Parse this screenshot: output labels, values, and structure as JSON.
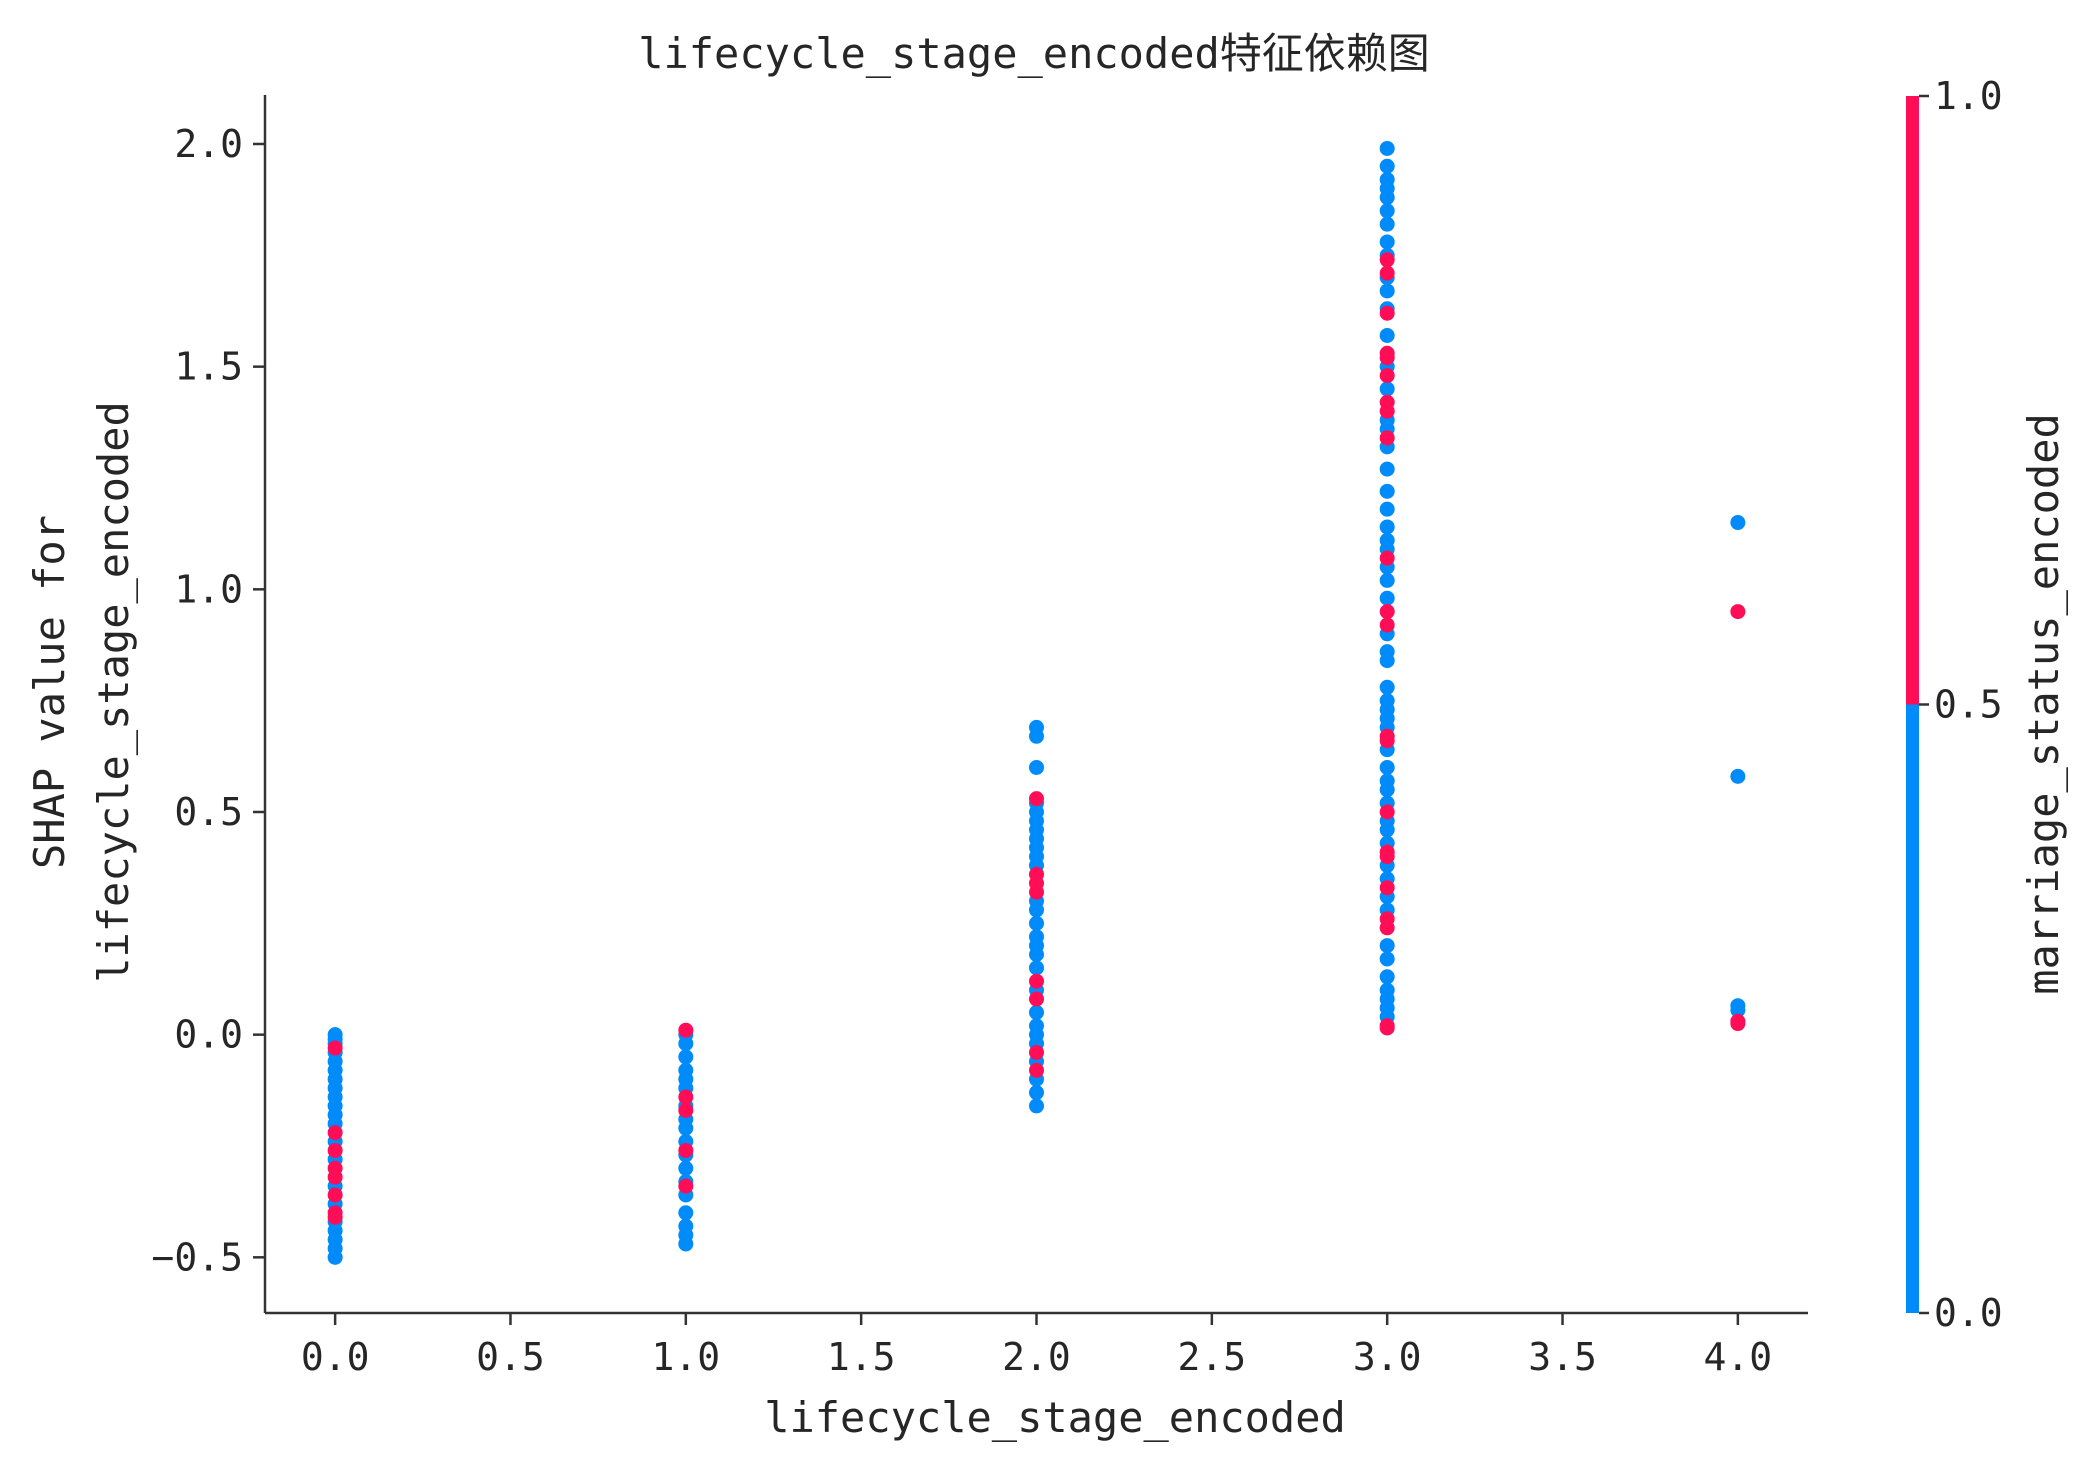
{
  "chart_data": {
    "type": "scatter",
    "title": "lifecycle_stage_encoded特征依赖图",
    "xlabel": "lifecycle_stage_encoded",
    "ylabel": [
      "SHAP value for",
      "lifecycle_stage_encoded"
    ],
    "xlim": [
      -0.2,
      4.2
    ],
    "ylim": [
      -0.625,
      2.11
    ],
    "xticks": [
      "0.0",
      "0.5",
      "1.0",
      "1.5",
      "2.0",
      "2.5",
      "3.0",
      "3.5",
      "4.0"
    ],
    "xtick_values": [
      0,
      0.5,
      1,
      1.5,
      2,
      2.5,
      3,
      3.5,
      4
    ],
    "yticks": [
      "−0.5",
      "0.0",
      "0.5",
      "1.0",
      "1.5",
      "2.0"
    ],
    "ytick_values": [
      -0.5,
      0,
      0.5,
      1,
      1.5,
      2
    ],
    "grid": false,
    "colors": {
      "high": "#ff0d57",
      "low": "#008bfb"
    },
    "colorbar": {
      "label": "marriage_status_encoded",
      "ticks": [
        "0.0",
        "0.5",
        "1.0"
      ],
      "tick_values": [
        0,
        0.5,
        1
      ],
      "range": [
        0,
        1
      ]
    },
    "series": [
      {
        "color_value": 0,
        "points": [
          [
            0,
            0.0
          ],
          [
            0,
            -0.01
          ],
          [
            0,
            -0.02
          ],
          [
            0,
            -0.04
          ],
          [
            0,
            -0.06
          ],
          [
            0,
            -0.08
          ],
          [
            0,
            -0.1
          ],
          [
            0,
            -0.12
          ],
          [
            0,
            -0.14
          ],
          [
            0,
            -0.16
          ],
          [
            0,
            -0.18
          ],
          [
            0,
            -0.2
          ],
          [
            0,
            -0.24
          ],
          [
            0,
            -0.28
          ],
          [
            0,
            -0.34
          ],
          [
            0,
            -0.38
          ],
          [
            0,
            -0.42
          ],
          [
            0,
            -0.44
          ],
          [
            0,
            -0.46
          ],
          [
            0,
            -0.48
          ],
          [
            0,
            -0.5
          ],
          [
            1,
            0.0
          ],
          [
            1,
            -0.02
          ],
          [
            1,
            -0.05
          ],
          [
            1,
            -0.08
          ],
          [
            1,
            -0.1
          ],
          [
            1,
            -0.12
          ],
          [
            1,
            -0.16
          ],
          [
            1,
            -0.19
          ],
          [
            1,
            -0.21
          ],
          [
            1,
            -0.24
          ],
          [
            1,
            -0.27
          ],
          [
            1,
            -0.3
          ],
          [
            1,
            -0.33
          ],
          [
            1,
            -0.36
          ],
          [
            1,
            -0.4
          ],
          [
            1,
            -0.43
          ],
          [
            1,
            -0.45
          ],
          [
            1,
            -0.47
          ],
          [
            2,
            0.69
          ],
          [
            2,
            0.67
          ],
          [
            2,
            0.6
          ],
          [
            2,
            0.52
          ],
          [
            2,
            0.5
          ],
          [
            2,
            0.48
          ],
          [
            2,
            0.46
          ],
          [
            2,
            0.44
          ],
          [
            2,
            0.42
          ],
          [
            2,
            0.4
          ],
          [
            2,
            0.38
          ],
          [
            2,
            0.3
          ],
          [
            2,
            0.28
          ],
          [
            2,
            0.25
          ],
          [
            2,
            0.22
          ],
          [
            2,
            0.2
          ],
          [
            2,
            0.18
          ],
          [
            2,
            0.15
          ],
          [
            2,
            0.1
          ],
          [
            2,
            0.05
          ],
          [
            2,
            0.02
          ],
          [
            2,
            0.0
          ],
          [
            2,
            -0.02
          ],
          [
            2,
            -0.06
          ],
          [
            2,
            -0.1
          ],
          [
            2,
            -0.13
          ],
          [
            2,
            -0.16
          ],
          [
            3,
            1.99
          ],
          [
            3,
            1.95
          ],
          [
            3,
            1.92
          ],
          [
            3,
            1.9
          ],
          [
            3,
            1.88
          ],
          [
            3,
            1.85
          ],
          [
            3,
            1.82
          ],
          [
            3,
            1.78
          ],
          [
            3,
            1.75
          ],
          [
            3,
            1.7
          ],
          [
            3,
            1.67
          ],
          [
            3,
            1.63
          ],
          [
            3,
            1.57
          ],
          [
            3,
            1.5
          ],
          [
            3,
            1.45
          ],
          [
            3,
            1.38
          ],
          [
            3,
            1.36
          ],
          [
            3,
            1.32
          ],
          [
            3,
            1.27
          ],
          [
            3,
            1.22
          ],
          [
            3,
            1.18
          ],
          [
            3,
            1.14
          ],
          [
            3,
            1.11
          ],
          [
            3,
            1.09
          ],
          [
            3,
            1.05
          ],
          [
            3,
            1.02
          ],
          [
            3,
            0.98
          ],
          [
            3,
            0.9
          ],
          [
            3,
            0.86
          ],
          [
            3,
            0.84
          ],
          [
            3,
            0.78
          ],
          [
            3,
            0.75
          ],
          [
            3,
            0.73
          ],
          [
            3,
            0.71
          ],
          [
            3,
            0.69
          ],
          [
            3,
            0.64
          ],
          [
            3,
            0.6
          ],
          [
            3,
            0.57
          ],
          [
            3,
            0.55
          ],
          [
            3,
            0.52
          ],
          [
            3,
            0.48
          ],
          [
            3,
            0.46
          ],
          [
            3,
            0.43
          ],
          [
            3,
            0.38
          ],
          [
            3,
            0.35
          ],
          [
            3,
            0.31
          ],
          [
            3,
            0.28
          ],
          [
            3,
            0.2
          ],
          [
            3,
            0.17
          ],
          [
            3,
            0.13
          ],
          [
            3,
            0.1
          ],
          [
            3,
            0.08
          ],
          [
            3,
            0.06
          ],
          [
            3,
            0.04
          ],
          [
            4,
            1.15
          ],
          [
            4,
            0.58
          ],
          [
            4,
            0.065
          ],
          [
            4,
            0.055
          ]
        ]
      },
      {
        "color_value": 1,
        "points": [
          [
            0,
            -0.03
          ],
          [
            0,
            -0.22
          ],
          [
            0,
            -0.26
          ],
          [
            0,
            -0.3
          ],
          [
            0,
            -0.32
          ],
          [
            0,
            -0.36
          ],
          [
            0,
            -0.4
          ],
          [
            0,
            -0.41
          ],
          [
            1,
            0.01
          ],
          [
            1,
            -0.14
          ],
          [
            1,
            -0.17
          ],
          [
            1,
            -0.26
          ],
          [
            1,
            -0.34
          ],
          [
            2,
            0.53
          ],
          [
            2,
            0.36
          ],
          [
            2,
            0.34
          ],
          [
            2,
            0.32
          ],
          [
            2,
            0.12
          ],
          [
            2,
            -0.04
          ],
          [
            2,
            -0.08
          ],
          [
            2,
            0.08
          ],
          [
            3,
            1.74
          ],
          [
            3,
            1.71
          ],
          [
            3,
            1.62
          ],
          [
            3,
            1.53
          ],
          [
            3,
            1.52
          ],
          [
            3,
            1.48
          ],
          [
            3,
            1.42
          ],
          [
            3,
            1.4
          ],
          [
            3,
            1.34
          ],
          [
            3,
            1.07
          ],
          [
            3,
            0.95
          ],
          [
            3,
            0.92
          ],
          [
            3,
            0.67
          ],
          [
            3,
            0.66
          ],
          [
            3,
            0.5
          ],
          [
            3,
            0.41
          ],
          [
            3,
            0.4
          ],
          [
            3,
            0.33
          ],
          [
            3,
            0.26
          ],
          [
            3,
            0.24
          ],
          [
            3,
            0.02
          ],
          [
            3,
            0.015
          ],
          [
            4,
            0.95
          ],
          [
            4,
            0.03
          ],
          [
            4,
            0.025
          ]
        ]
      }
    ]
  }
}
